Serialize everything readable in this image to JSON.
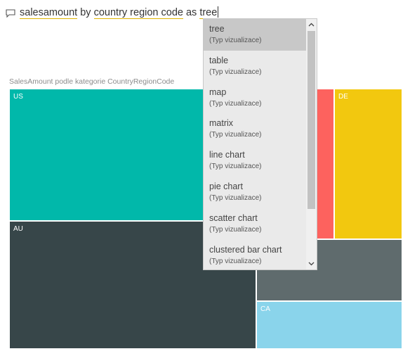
{
  "qa": {
    "query_words": [
      {
        "text": "salesamount",
        "keyword": true
      },
      {
        "text": " by ",
        "keyword": false
      },
      {
        "text": "country region code",
        "keyword": true
      },
      {
        "text": " as ",
        "keyword": false
      },
      {
        "text": "tree",
        "keyword": true
      }
    ]
  },
  "chart": {
    "title": "SalesAmount podle kategorie CountryRegionCode",
    "cells": {
      "us": "US",
      "au": "AU",
      "fr": "",
      "de": "DE",
      "gb": "",
      "ca": "CA"
    },
    "colors": {
      "us": "#01b8aa",
      "au": "#374649",
      "fr": "#fd625e",
      "de": "#f2c80f",
      "gb": "#5f6b6d",
      "ca": "#8ad4eb"
    }
  },
  "dropdown": {
    "items": [
      {
        "label": "tree",
        "sub": "(Typ vizualizace)",
        "selected": true
      },
      {
        "label": "table",
        "sub": "(Typ vizualizace)",
        "selected": false
      },
      {
        "label": "map",
        "sub": "(Typ vizualizace)",
        "selected": false
      },
      {
        "label": "matrix",
        "sub": "(Typ vizualizace)",
        "selected": false
      },
      {
        "label": "line chart",
        "sub": "(Typ vizualizace)",
        "selected": false
      },
      {
        "label": "pie chart",
        "sub": "(Typ vizualizace)",
        "selected": false
      },
      {
        "label": "scatter chart",
        "sub": "(Typ vizualizace)",
        "selected": false
      },
      {
        "label": "clustered bar chart",
        "sub": "(Typ vizualizace)",
        "selected": false
      }
    ],
    "scroll_up_icon": "chevron-up-icon",
    "scroll_down_icon": "chevron-down-icon"
  }
}
